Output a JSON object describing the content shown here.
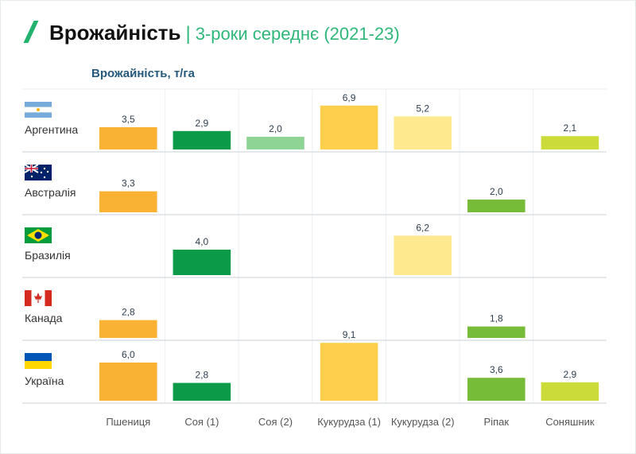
{
  "header": {
    "title": "Врожайність",
    "separator": "|",
    "subtitle": "3-роки середнє (2021-23)"
  },
  "chart_data": {
    "type": "bar",
    "layout": "small-multiples grid",
    "ylabel": "Врожайність, т/га",
    "categories": [
      "Пшениця",
      "Соя (1)",
      "Соя (2)",
      "Кукурудза (1)",
      "Кукурудза (2)",
      "Ріпак",
      "Соняшник"
    ],
    "colors": [
      "#F9B233",
      "#0A9A48",
      "#8ED494",
      "#FDCF4C",
      "#FEE98F",
      "#76BC38",
      "#CADB3A"
    ],
    "series": [
      {
        "name": "Аргентина",
        "flag": "argentina-flag",
        "values": [
          3.5,
          2.9,
          2.0,
          6.9,
          5.2,
          null,
          2.1
        ],
        "labels": [
          "3,5",
          "2,9",
          "2,0",
          "6,9",
          "5,2",
          "",
          "2,1"
        ]
      },
      {
        "name": "Австралія",
        "flag": "australia-flag",
        "values": [
          3.3,
          null,
          null,
          null,
          null,
          2.0,
          null
        ],
        "labels": [
          "3,3",
          "",
          "",
          "",
          "",
          "2,0",
          ""
        ]
      },
      {
        "name": "Бразилія",
        "flag": "brazil-flag",
        "values": [
          null,
          4.0,
          null,
          null,
          6.2,
          null,
          null
        ],
        "labels": [
          "",
          "4,0",
          "",
          "",
          "6,2",
          "",
          ""
        ]
      },
      {
        "name": "Канада",
        "flag": "canada-flag",
        "values": [
          2.8,
          null,
          null,
          null,
          null,
          1.8,
          null
        ],
        "labels": [
          "2,8",
          "",
          "",
          "",
          "",
          "1,8",
          ""
        ]
      },
      {
        "name": "Україна",
        "flag": "ukraine-flag",
        "values": [
          6.0,
          2.8,
          null,
          9.1,
          null,
          3.6,
          2.9
        ],
        "labels": [
          "6,0",
          "2,8",
          "",
          "9,1",
          "",
          "3,6",
          "2,9"
        ]
      }
    ],
    "grid": true,
    "ylim": [
      0,
      10
    ]
  }
}
